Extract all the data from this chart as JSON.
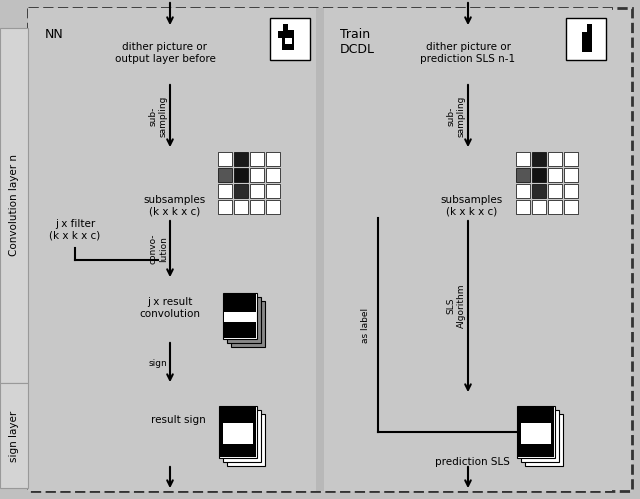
{
  "fig_width": 6.4,
  "fig_height": 4.99,
  "bg_outer": "#c0c0c0",
  "bg_panel": "#cccccc",
  "bg_side": "#d8d8d8",
  "white": "#ffffff",
  "black": "#000000",
  "left_panel_label": "NN",
  "right_panel_label": "Train\nDCDL",
  "convolution_layer_label": "Convolution layer n",
  "sign_layer_label": "sign layer",
  "left_top_text": "dither picture or\noutput layer before",
  "right_top_text": "dither picture or\nprediction SLS n-1",
  "left_subsampling_label": "sub-\nsampling",
  "right_subsampling_label": "sub-\nsampling",
  "left_subsamples_label": "subsamples\n(k x k x c)",
  "right_subsamples_label": "subsamples\n(k x k x c)",
  "filter_label": "j x filter\n(k x k x c)",
  "convolution_label": "convo-\nlution",
  "result_conv_label": "j x result\nconvolution",
  "sign_label": "sign",
  "result_sign_label": "result sign",
  "as_label_label": "as label",
  "sls_algo_label": "SLS\nAlgorithm",
  "prediction_sls_label": "prediction SLS",
  "font_size": 7.5,
  "small_font": 6.5
}
